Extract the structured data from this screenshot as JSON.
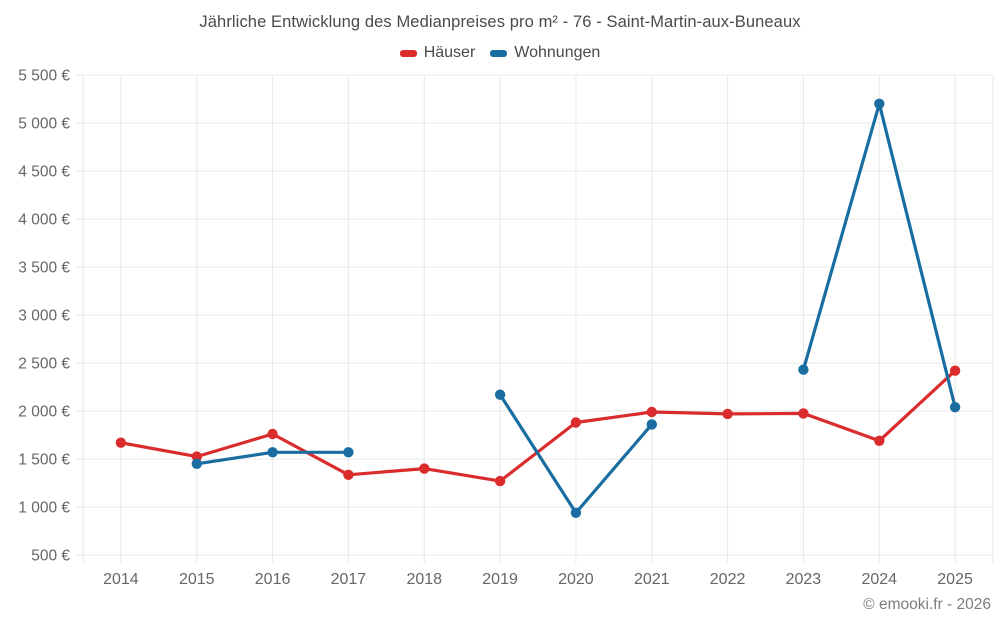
{
  "chart_data": {
    "type": "line",
    "title": "Jährliche Entwicklung des Medianpreises pro m² - 76 - Saint-Martin-aux-Buneaux",
    "categories": [
      "2014",
      "2015",
      "2016",
      "2017",
      "2018",
      "2019",
      "2020",
      "2021",
      "2022",
      "2023",
      "2024",
      "2025"
    ],
    "series": [
      {
        "name": "Häuser",
        "color": "#da2c2c",
        "values": [
          1670,
          1525,
          1760,
          1335,
          1400,
          1270,
          1880,
          1990,
          1970,
          1975,
          1690,
          2420
        ]
      },
      {
        "name": "Wohnungen",
        "color": "#1a6da1",
        "values": [
          null,
          1450,
          1570,
          1570,
          null,
          2170,
          940,
          1860,
          null,
          2430,
          5200,
          2040
        ]
      }
    ],
    "ylim": [
      500,
      5500
    ],
    "ytick_step": 500,
    "y_tick_labels": [
      "500 €",
      "1 000 €",
      "1 500 €",
      "2 000 €",
      "2 500 €",
      "3 000 €",
      "3 500 €",
      "4 000 €",
      "4 500 €",
      "5 000 €",
      "5 500 €"
    ],
    "xlabel": "",
    "ylabel": "",
    "grid": true,
    "legend_position": "top",
    "line_width": 3.2,
    "marker_radius": 5.2
  },
  "footer": {
    "credit": "© emooki.fr - 2026"
  },
  "colors": {
    "background": "#ffffff",
    "grid": "#e8e8e8",
    "title_text": "#4a4a4a",
    "axis_text": "#666666",
    "footer_text": "#7d7d7d"
  }
}
